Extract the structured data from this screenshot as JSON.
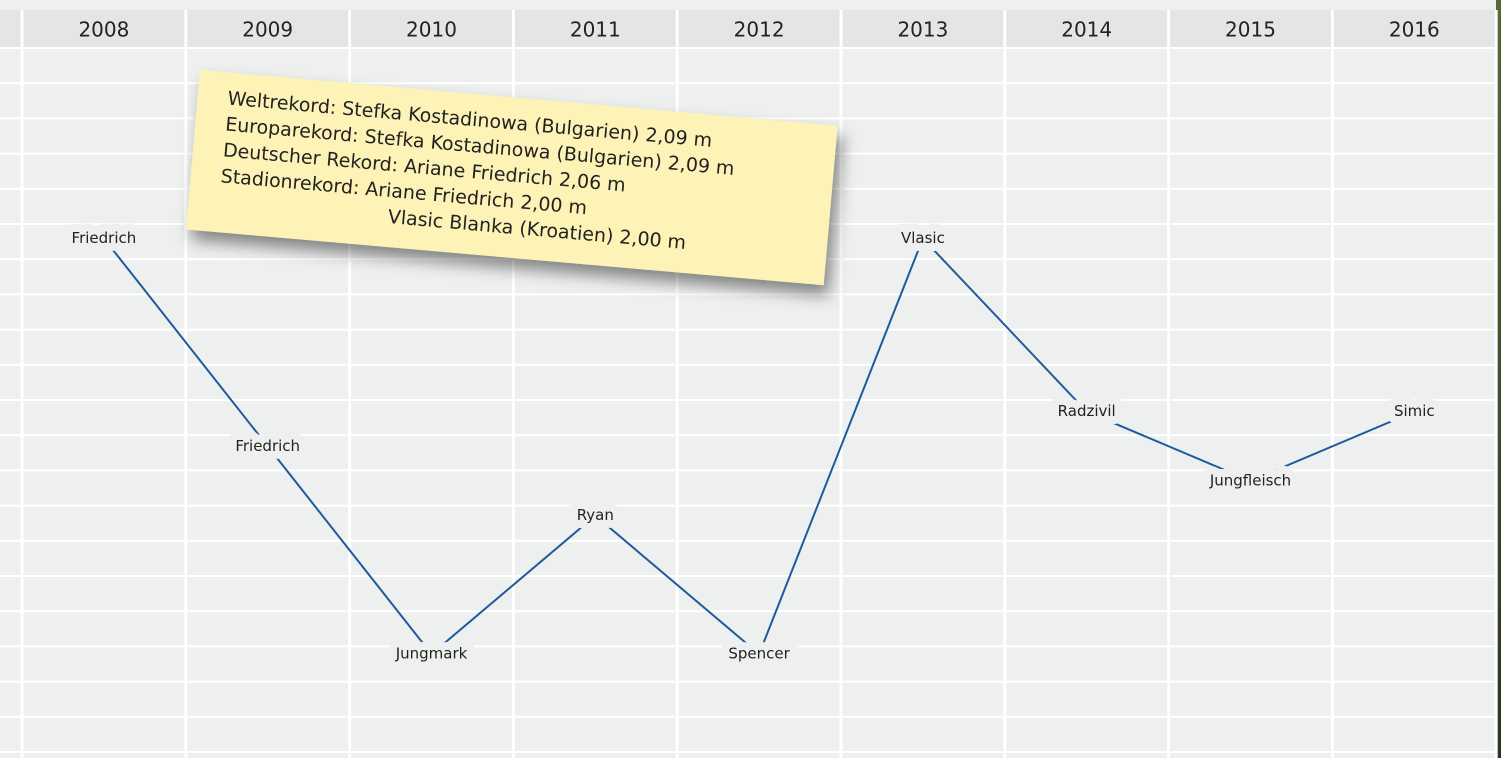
{
  "chart_data": {
    "type": "line",
    "categories": [
      "2008",
      "2009",
      "2010",
      "2011",
      "2012",
      "2013",
      "2014",
      "2015",
      "2016"
    ],
    "series": [
      {
        "color": "#1f5a9c",
        "values": [
          2.0,
          1.94,
          1.88,
          1.92,
          1.88,
          2.0,
          1.95,
          1.93,
          1.95
        ],
        "point_labels": [
          "Friedrich",
          "Friedrich",
          "Jungmark",
          "Ryan",
          "Spencer",
          "Vlasic",
          "Radzivil",
          "Jungfleisch",
          "Simic"
        ]
      }
    ],
    "ylim": [
      1.85,
      2.055
    ],
    "note": [
      "Weltrekord: Stefka Kostadinowa (Bulgarien) 2,09 m",
      "Europarekord: Stefka Kostadinowa (Bulgarien) 2,09 m",
      "Deutscher Rekord: Ariane Friedrich 2,06 m",
      "Stadionrekord: Ariane Friedrich 2,00 m",
      "Vlasic Blanka (Kroatien) 2,00 m"
    ]
  }
}
